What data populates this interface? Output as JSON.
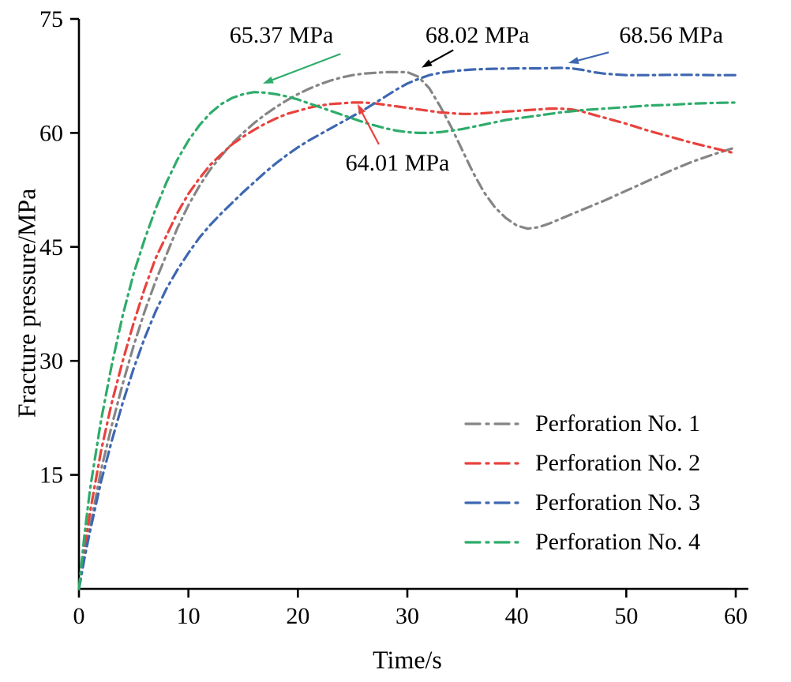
{
  "chart_data": {
    "type": "line",
    "title": "",
    "xlabel": "Time/s",
    "ylabel": "Fracture pressure/MPa",
    "xlim": [
      0,
      60
    ],
    "ylim": [
      0,
      75
    ],
    "xticks": [
      0,
      10,
      20,
      30,
      40,
      50,
      60
    ],
    "yticks": [
      15,
      30,
      45,
      60,
      75
    ],
    "grid": false,
    "legend_position": "lower-right",
    "line_style": "dash-dot",
    "axis_color": "#000000",
    "series": [
      {
        "name": "Perforation No. 1",
        "color": "#858585",
        "points": [
          [
            0,
            0
          ],
          [
            0.5,
            4
          ],
          [
            1,
            8
          ],
          [
            2,
            15.5
          ],
          [
            3,
            21.5
          ],
          [
            4,
            27
          ],
          [
            5,
            32
          ],
          [
            6,
            36.5
          ],
          [
            7,
            40.5
          ],
          [
            8,
            44
          ],
          [
            9,
            47.5
          ],
          [
            10,
            50.5
          ],
          [
            11,
            53
          ],
          [
            12,
            55.2
          ],
          [
            13,
            57
          ],
          [
            14,
            58.6
          ],
          [
            15,
            60
          ],
          [
            16,
            61.3
          ],
          [
            17,
            62.4
          ],
          [
            18,
            63.4
          ],
          [
            19,
            64.3
          ],
          [
            20,
            65.1
          ],
          [
            21,
            65.8
          ],
          [
            22,
            66.4
          ],
          [
            23,
            66.9
          ],
          [
            24,
            67.3
          ],
          [
            25,
            67.6
          ],
          [
            26,
            67.8
          ],
          [
            27,
            67.9
          ],
          [
            28,
            68.0
          ],
          [
            29,
            68.0
          ],
          [
            30,
            68.0
          ],
          [
            31,
            67.4
          ],
          [
            32,
            65.9
          ],
          [
            33,
            63.5
          ],
          [
            34,
            60.8
          ],
          [
            35,
            57.8
          ],
          [
            36,
            54.8
          ],
          [
            37,
            52.2
          ],
          [
            38,
            50.2
          ],
          [
            39,
            48.8
          ],
          [
            40,
            47.8
          ],
          [
            41,
            47.4
          ],
          [
            42,
            47.6
          ],
          [
            43,
            48.1
          ],
          [
            44,
            48.7
          ],
          [
            46,
            49.9
          ],
          [
            48,
            51.1
          ],
          [
            50,
            52.4
          ],
          [
            52,
            53.7
          ],
          [
            54,
            55.0
          ],
          [
            56,
            56.2
          ],
          [
            58,
            57.2
          ],
          [
            60,
            58.1
          ]
        ]
      },
      {
        "name": "Perforation No. 2",
        "color": "#e8423d",
        "points": [
          [
            0,
            0
          ],
          [
            0.5,
            5
          ],
          [
            1,
            10
          ],
          [
            2,
            18
          ],
          [
            3,
            24.5
          ],
          [
            4,
            30
          ],
          [
            5,
            35
          ],
          [
            6,
            39.5
          ],
          [
            7,
            43.5
          ],
          [
            8,
            46.5
          ],
          [
            9,
            49.5
          ],
          [
            10,
            52
          ],
          [
            11,
            54
          ],
          [
            12,
            55.8
          ],
          [
            13,
            57.2
          ],
          [
            14,
            58.5
          ],
          [
            15,
            59.5
          ],
          [
            16,
            60.4
          ],
          [
            17,
            61.2
          ],
          [
            18,
            61.9
          ],
          [
            19,
            62.5
          ],
          [
            20,
            62.9
          ],
          [
            21,
            63.3
          ],
          [
            22,
            63.6
          ],
          [
            23,
            63.8
          ],
          [
            24,
            63.9
          ],
          [
            25,
            64.0
          ],
          [
            26,
            64.0
          ],
          [
            27,
            63.9
          ],
          [
            28,
            63.7
          ],
          [
            29,
            63.5
          ],
          [
            30,
            63.3
          ],
          [
            31,
            63.1
          ],
          [
            32,
            62.9
          ],
          [
            33,
            62.7
          ],
          [
            34,
            62.6
          ],
          [
            35,
            62.5
          ],
          [
            36,
            62.5
          ],
          [
            37,
            62.6
          ],
          [
            38,
            62.7
          ],
          [
            39,
            62.8
          ],
          [
            40,
            62.9
          ],
          [
            41,
            63.0
          ],
          [
            42,
            63.1
          ],
          [
            43,
            63.2
          ],
          [
            44,
            63.2
          ],
          [
            45,
            63.1
          ],
          [
            46,
            62.8
          ],
          [
            47,
            62.4
          ],
          [
            48,
            62.0
          ],
          [
            50,
            61.2
          ],
          [
            52,
            60.3
          ],
          [
            54,
            59.5
          ],
          [
            56,
            58.7
          ],
          [
            58,
            58.0
          ],
          [
            60,
            57.3
          ]
        ]
      },
      {
        "name": "Perforation No. 3",
        "color": "#3e67b1",
        "points": [
          [
            0,
            0
          ],
          [
            0.5,
            4
          ],
          [
            1,
            7.5
          ],
          [
            2,
            14
          ],
          [
            3,
            19.5
          ],
          [
            4,
            24.5
          ],
          [
            5,
            29
          ],
          [
            6,
            33
          ],
          [
            7,
            36.5
          ],
          [
            8,
            39.5
          ],
          [
            9,
            42
          ],
          [
            10,
            44.2
          ],
          [
            11,
            46.2
          ],
          [
            12,
            47.9
          ],
          [
            13,
            49.4
          ],
          [
            14,
            50.8
          ],
          [
            15,
            52.2
          ],
          [
            16,
            53.5
          ],
          [
            17,
            54.8
          ],
          [
            18,
            56
          ],
          [
            19,
            57.1
          ],
          [
            20,
            58.1
          ],
          [
            21,
            59
          ],
          [
            22,
            59.8
          ],
          [
            23,
            60.6
          ],
          [
            24,
            61.4
          ],
          [
            25,
            62.2
          ],
          [
            26,
            63
          ],
          [
            27,
            63.9
          ],
          [
            28,
            64.8
          ],
          [
            29,
            65.7
          ],
          [
            30,
            66.5
          ],
          [
            31,
            67.1
          ],
          [
            32,
            67.6
          ],
          [
            33,
            67.9
          ],
          [
            34,
            68.1
          ],
          [
            35,
            68.25
          ],
          [
            36,
            68.35
          ],
          [
            37,
            68.4
          ],
          [
            38,
            68.45
          ],
          [
            40,
            68.5
          ],
          [
            42,
            68.5
          ],
          [
            44,
            68.56
          ],
          [
            45,
            68.5
          ],
          [
            46,
            68.3
          ],
          [
            47,
            68.0
          ],
          [
            48,
            67.8
          ],
          [
            49,
            67.7
          ],
          [
            50,
            67.6
          ],
          [
            52,
            67.6
          ],
          [
            54,
            67.65
          ],
          [
            56,
            67.65
          ],
          [
            58,
            67.6
          ],
          [
            60,
            67.6
          ]
        ]
      },
      {
        "name": "Perforation No. 4",
        "color": "#2eac6b",
        "points": [
          [
            0,
            0
          ],
          [
            0.5,
            7
          ],
          [
            1,
            13
          ],
          [
            2,
            22
          ],
          [
            3,
            29.5
          ],
          [
            4,
            36
          ],
          [
            5,
            41.5
          ],
          [
            6,
            46
          ],
          [
            7,
            50
          ],
          [
            8,
            53.5
          ],
          [
            9,
            56.5
          ],
          [
            10,
            59
          ],
          [
            11,
            61
          ],
          [
            12,
            62.6
          ],
          [
            13,
            63.8
          ],
          [
            14,
            64.6
          ],
          [
            15,
            65.1
          ],
          [
            16,
            65.37
          ],
          [
            17,
            65.3
          ],
          [
            18,
            65.1
          ],
          [
            19,
            64.8
          ],
          [
            20,
            64.4
          ],
          [
            21,
            63.9
          ],
          [
            22,
            63.4
          ],
          [
            23,
            62.9
          ],
          [
            24,
            62.4
          ],
          [
            25,
            61.9
          ],
          [
            26,
            61.4
          ],
          [
            27,
            61.0
          ],
          [
            28,
            60.6
          ],
          [
            29,
            60.3
          ],
          [
            30,
            60.1
          ],
          [
            31,
            60.0
          ],
          [
            32,
            60.0
          ],
          [
            33,
            60.1
          ],
          [
            34,
            60.3
          ],
          [
            35,
            60.5
          ],
          [
            36,
            60.8
          ],
          [
            37,
            61.1
          ],
          [
            38,
            61.4
          ],
          [
            39,
            61.7
          ],
          [
            40,
            61.9
          ],
          [
            42,
            62.3
          ],
          [
            44,
            62.7
          ],
          [
            46,
            63.0
          ],
          [
            48,
            63.2
          ],
          [
            50,
            63.4
          ],
          [
            52,
            63.6
          ],
          [
            54,
            63.7
          ],
          [
            56,
            63.85
          ],
          [
            58,
            63.95
          ],
          [
            60,
            64.0
          ]
        ]
      }
    ],
    "annotations": [
      {
        "label": "65.37 MPa",
        "color": "#2eac6b",
        "text_x": 18.5,
        "text_y": 72.8,
        "arrow": {
          "x1": 23.9,
          "y1": 70.4,
          "x2": 16.8,
          "y2": 66.5
        }
      },
      {
        "label": "68.02 MPa",
        "color": "#000000",
        "text_x": 36.4,
        "text_y": 72.8,
        "arrow": {
          "x1": 34.2,
          "y1": 70.9,
          "x2": 31.3,
          "y2": 68.6
        }
      },
      {
        "label": "68.56 MPa",
        "color": "#3e67b1",
        "text_x": 54.1,
        "text_y": 72.8,
        "arrow": {
          "x1": 48.4,
          "y1": 70.6,
          "x2": 44.7,
          "y2": 69.2
        }
      },
      {
        "label": "64.01 MPa",
        "color": "#e8423d",
        "text_x": 29.1,
        "text_y": 56.0,
        "arrow": {
          "x1": 27.4,
          "y1": 58.5,
          "x2": 25.45,
          "y2": 63.8
        }
      }
    ]
  }
}
